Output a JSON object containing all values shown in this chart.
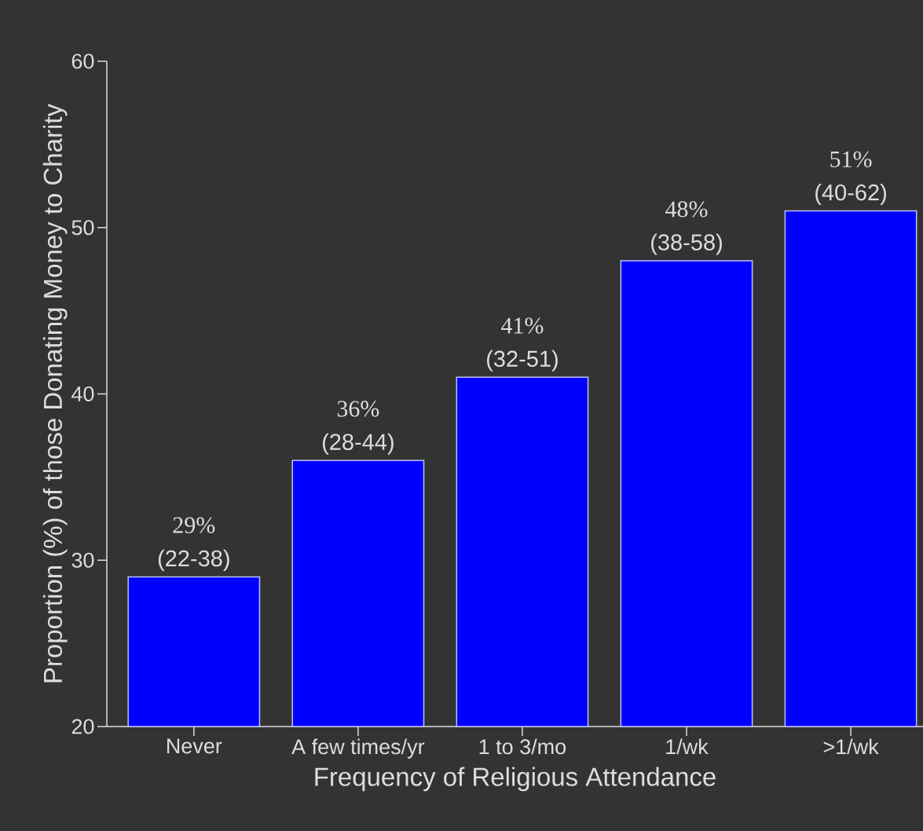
{
  "chart_data": {
    "type": "bar",
    "xlabel": "Frequency of Religious Attendance",
    "ylabel": "Proportion (%) of those Donating Money to Charity",
    "categories": [
      "Never",
      "A few times/yr",
      "1 to 3/mo",
      "1/wk",
      ">1/wk"
    ],
    "values": [
      29,
      36,
      41,
      48,
      51
    ],
    "color": "#0000ff",
    "value_labels": [
      "29%",
      "36%",
      "41%",
      "48%",
      "51%"
    ],
    "annotations": [
      {
        "text": "(22-38)",
        "x": "Never",
        "y": 29
      },
      {
        "text": "(28-44)",
        "x": "A few times/yr",
        "y": 36
      },
      {
        "text": "(32-51)",
        "x": "1 to 3/mo",
        "y": 41
      },
      {
        "text": "(38-58)",
        "x": "1/wk",
        "y": 48
      },
      {
        "text": "(40-62)",
        "x": ">1/wk",
        "y": 51
      }
    ],
    "ylim": [
      20,
      60
    ],
    "yticks": [
      20,
      30,
      40,
      50,
      60
    ],
    "grid": false
  }
}
